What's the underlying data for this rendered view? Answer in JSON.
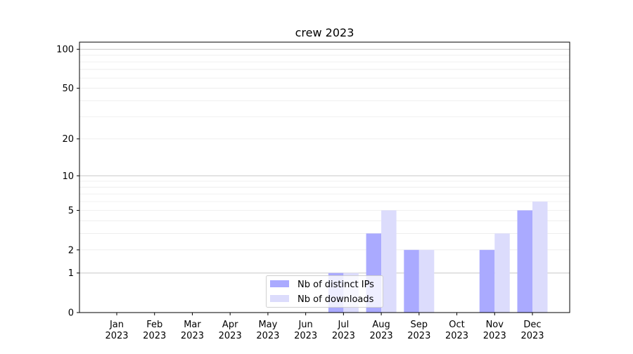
{
  "chart_data": {
    "type": "bar",
    "title": "crew 2023",
    "xlabel": "",
    "ylabel": "",
    "yscale": "log(1+y)",
    "ylim": [
      0,
      113.5
    ],
    "grid": "horizontal major and minor",
    "legend_placement": "lower-center",
    "categories": [
      [
        "Jan",
        "2023"
      ],
      [
        "Feb",
        "2023"
      ],
      [
        "Mar",
        "2023"
      ],
      [
        "Apr",
        "2023"
      ],
      [
        "May",
        "2023"
      ],
      [
        "Jun",
        "2023"
      ],
      [
        "Jul",
        "2023"
      ],
      [
        "Aug",
        "2023"
      ],
      [
        "Sep",
        "2023"
      ],
      [
        "Oct",
        "2023"
      ],
      [
        "Nov",
        "2023"
      ],
      [
        "Dec",
        "2023"
      ]
    ],
    "yticks": [
      0,
      1,
      2,
      5,
      10,
      20,
      50,
      100
    ],
    "ytick_labels": [
      "0",
      "1",
      "2",
      "5",
      "10",
      "20",
      "50",
      "100"
    ],
    "series": [
      {
        "name": "Nb of distinct IPs",
        "color": "#aaaaff",
        "values": [
          0,
          0,
          0,
          0,
          0,
          0,
          1,
          3,
          2,
          0,
          2,
          5
        ]
      },
      {
        "name": "Nb of downloads",
        "color": "#dcdcfc",
        "values": [
          0,
          0,
          0,
          0,
          0,
          0,
          1,
          5,
          2,
          0,
          3,
          6
        ]
      }
    ]
  }
}
